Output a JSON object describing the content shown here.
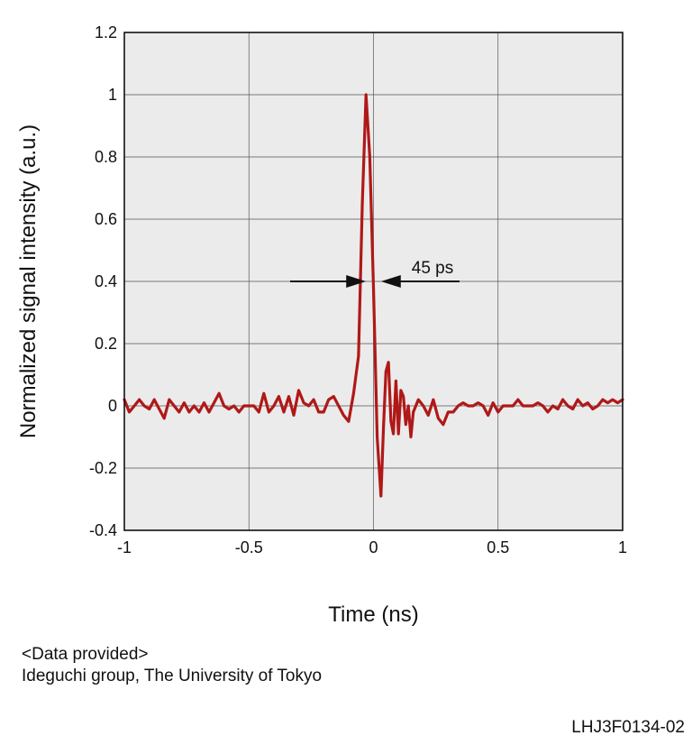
{
  "chart_data": {
    "type": "line",
    "title": "",
    "xlabel": "Time (ns)",
    "ylabel": "Normalized signal intensity (a.u.)",
    "xlim": [
      -1,
      1
    ],
    "ylim": [
      -0.4,
      1.2
    ],
    "xticks": [
      -1,
      -0.5,
      0,
      0.5,
      1
    ],
    "xtick_labels": [
      "-1",
      "-0.5",
      "0",
      "0.5",
      "1"
    ],
    "yticks": [
      -0.4,
      -0.2,
      0,
      0.2,
      0.4,
      0.6,
      0.8,
      1,
      1.2
    ],
    "ytick_labels": [
      "-0.4",
      "-0.2",
      "0",
      "0.2",
      "0.4",
      "0.6",
      "0.8",
      "1",
      "1.2"
    ],
    "grid": true,
    "background_color": "#ebebeb",
    "series": [
      {
        "color": "#b01818",
        "x": [
          -1,
          -0.98,
          -0.96,
          -0.94,
          -0.92,
          -0.9,
          -0.88,
          -0.86,
          -0.84,
          -0.82,
          -0.8,
          -0.78,
          -0.76,
          -0.74,
          -0.72,
          -0.7,
          -0.68,
          -0.66,
          -0.64,
          -0.62,
          -0.6,
          -0.58,
          -0.56,
          -0.54,
          -0.52,
          -0.5,
          -0.48,
          -0.46,
          -0.44,
          -0.42,
          -0.4,
          -0.38,
          -0.36,
          -0.34,
          -0.32,
          -0.3,
          -0.28,
          -0.26,
          -0.24,
          -0.22,
          -0.2,
          -0.18,
          -0.16,
          -0.14,
          -0.12,
          -0.1,
          -0.08,
          -0.06,
          -0.045,
          -0.03,
          -0.015,
          0,
          0.015,
          0.03,
          0.04,
          0.05,
          0.06,
          0.07,
          0.08,
          0.09,
          0.1,
          0.11,
          0.12,
          0.13,
          0.14,
          0.15,
          0.16,
          0.18,
          0.2,
          0.22,
          0.24,
          0.26,
          0.28,
          0.3,
          0.32,
          0.34,
          0.36,
          0.38,
          0.4,
          0.42,
          0.44,
          0.46,
          0.48,
          0.5,
          0.52,
          0.54,
          0.56,
          0.58,
          0.6,
          0.62,
          0.64,
          0.66,
          0.68,
          0.7,
          0.72,
          0.74,
          0.76,
          0.78,
          0.8,
          0.82,
          0.84,
          0.86,
          0.88,
          0.9,
          0.92,
          0.94,
          0.96,
          0.98,
          1
        ],
        "y": [
          0.02,
          -0.02,
          0.0,
          0.02,
          0.0,
          -0.01,
          0.02,
          -0.01,
          -0.04,
          0.02,
          0.0,
          -0.02,
          0.01,
          -0.02,
          0.0,
          -0.02,
          0.01,
          -0.02,
          0.01,
          0.04,
          0.0,
          -0.01,
          0.0,
          -0.02,
          0.0,
          0.0,
          0.0,
          -0.02,
          0.04,
          -0.02,
          0.0,
          0.03,
          -0.02,
          0.03,
          -0.03,
          0.05,
          0.01,
          0.0,
          0.02,
          -0.02,
          -0.02,
          0.02,
          0.03,
          0.0,
          -0.03,
          -0.05,
          0.04,
          0.16,
          0.65,
          1.0,
          0.8,
          0.38,
          -0.1,
          -0.29,
          -0.07,
          0.11,
          0.14,
          -0.05,
          -0.09,
          0.08,
          -0.09,
          0.05,
          0.03,
          -0.06,
          0.0,
          -0.1,
          -0.02,
          0.02,
          0.0,
          -0.03,
          0.02,
          -0.04,
          -0.06,
          -0.02,
          -0.02,
          0.0,
          0.01,
          0.0,
          0.0,
          0.01,
          0.0,
          -0.03,
          0.01,
          -0.02,
          0.0,
          0.0,
          0.0,
          0.02,
          0.0,
          0.0,
          0.0,
          0.01,
          0.0,
          -0.02,
          0.0,
          -0.01,
          0.02,
          0.0,
          -0.01,
          0.02,
          0.0,
          0.01,
          -0.01,
          0.0,
          0.02,
          0.01,
          0.02,
          0.01,
          0.02
        ]
      }
    ],
    "annotations": [
      {
        "text": "45 ps",
        "y": 0.4,
        "x_left": -0.03,
        "x_right": 0.03
      }
    ]
  },
  "footer": {
    "line1": "<Data provided>",
    "line2": "Ideguchi group, The University of Tokyo",
    "code": "LHJ3F0134-02"
  }
}
